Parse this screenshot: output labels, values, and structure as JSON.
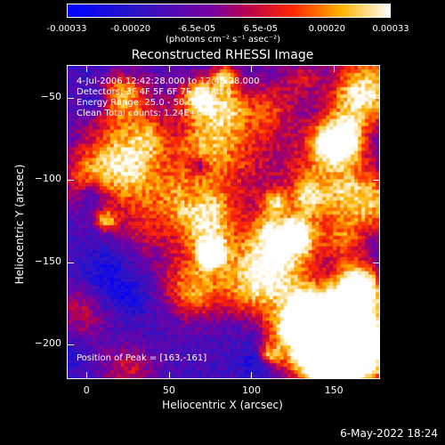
{
  "chart_data": {
    "type": "heatmap",
    "title": "Reconstructed RHESSI Image",
    "xlabel": "Heliocentric X (arcsec)",
    "ylabel": "Heliocentric Y (arcsec)",
    "xlim": [
      -12,
      178
    ],
    "ylim": [
      -221,
      -30
    ],
    "x_ticks": [
      0,
      50,
      100,
      150
    ],
    "y_ticks": [
      -50,
      -100,
      -150,
      -200
    ],
    "colorbar": {
      "ticks": [
        "-0.00033",
        "-0.00020",
        "-6.5e-05",
        "6.5e-05",
        "0.00020",
        "0.00033"
      ],
      "unit_label": "(photons cm⁻² s⁻¹ asec⁻²)",
      "range": [
        -0.00033,
        0.00033
      ]
    },
    "annotations": [
      "4-Jul-2006 12:42:28.000 to 12:48:28.000",
      "Detectors: 3F 4F 5F 6F 7F 8F, Att 0",
      "Energy Range: 25.0 - 50.0 keV",
      "Clean      Total counts: 1.24E+04"
    ],
    "peak_label": "Position of Peak = [163,-161]",
    "peak": [
      163,
      -161
    ]
  },
  "footer": {
    "date_stamp": "6-May-2022 18:24"
  }
}
